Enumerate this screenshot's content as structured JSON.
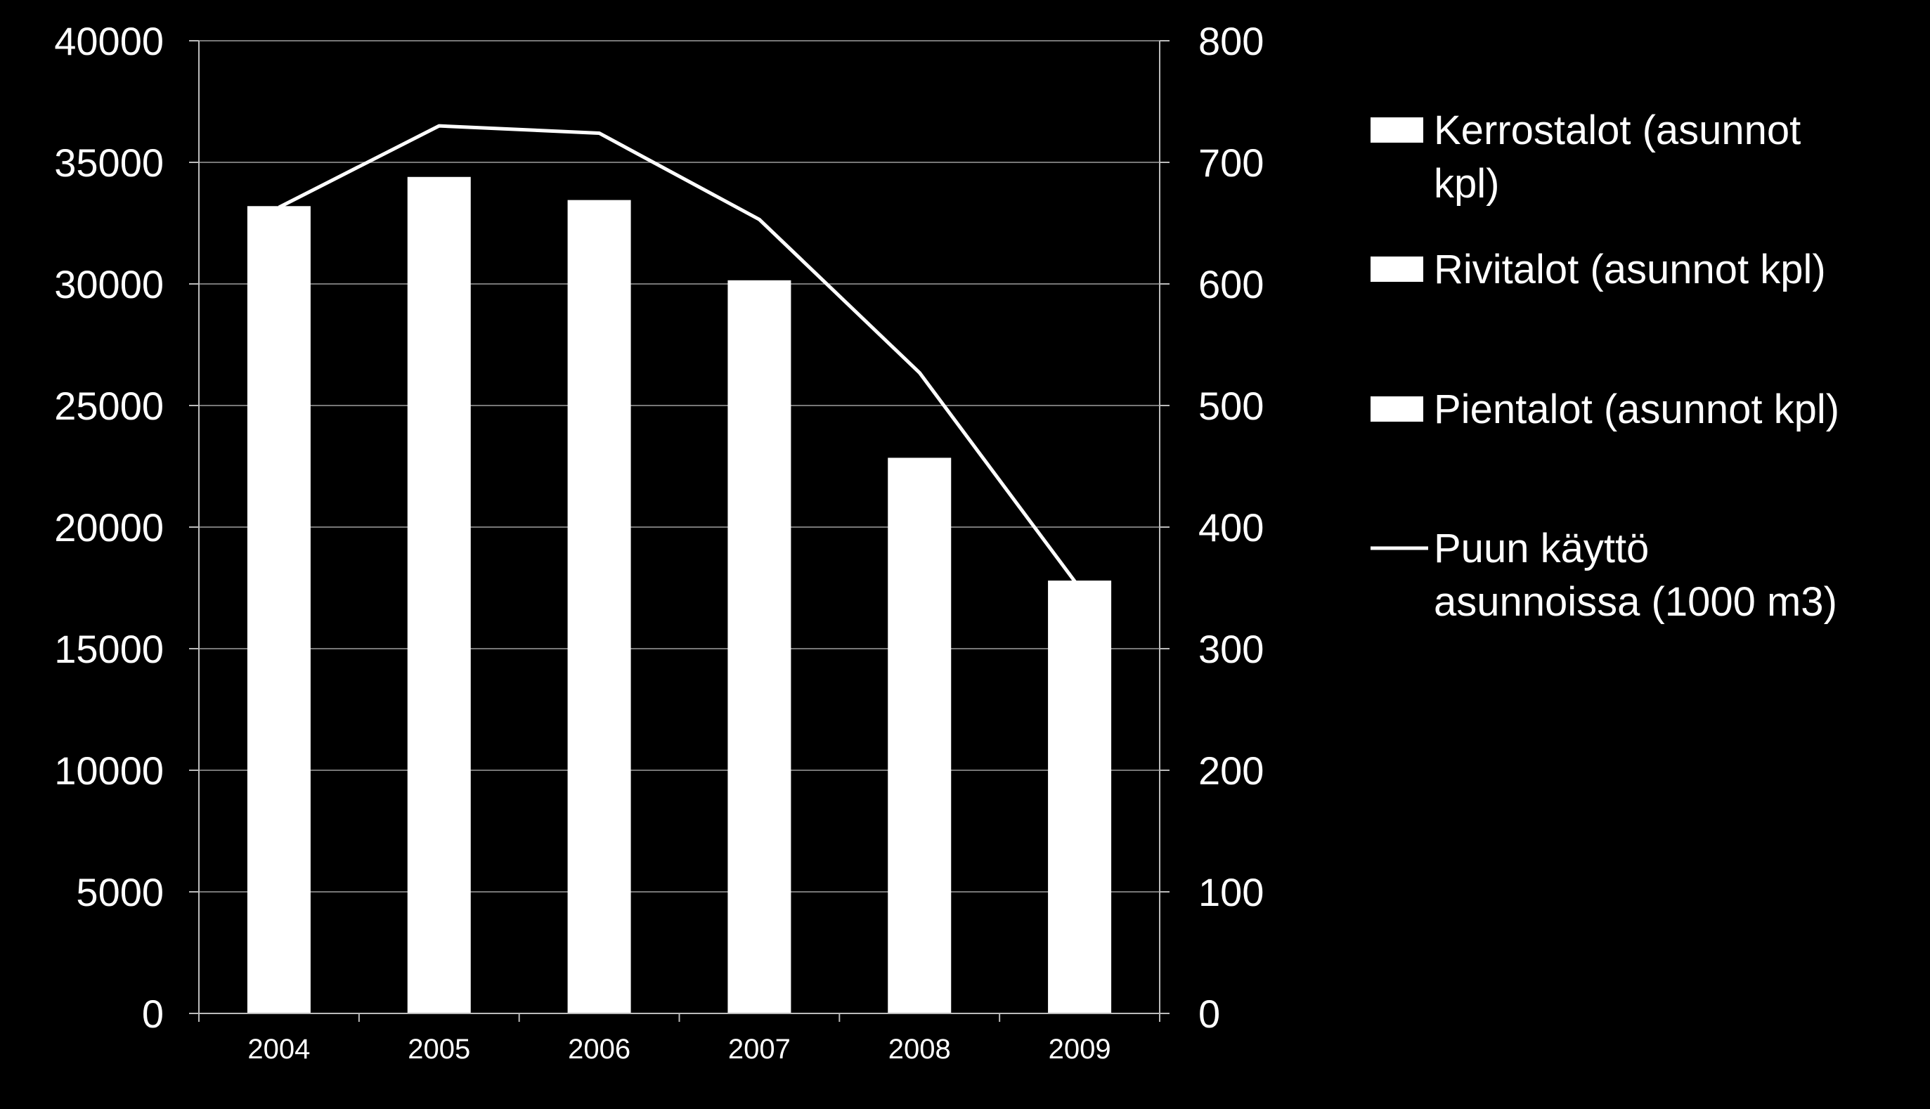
{
  "chart_data": {
    "type": "bar",
    "categories": [
      "2004",
      "2005",
      "2006",
      "2007",
      "2008",
      "2009"
    ],
    "series": [
      {
        "name": "Kerrostalot (asunnot kpl)",
        "type": "bar",
        "axis": "left",
        "values": [
          33200,
          34400,
          33450,
          30150,
          22850,
          17800
        ]
      },
      {
        "name": "Rivitalot (asunnot kpl)",
        "type": "bar",
        "axis": "left",
        "values": [
          0,
          0,
          0,
          0,
          0,
          0
        ]
      },
      {
        "name": "Pientalot (asunnot kpl)",
        "type": "bar",
        "axis": "left",
        "values": [
          0,
          0,
          0,
          0,
          0,
          0
        ]
      },
      {
        "name": "Puun käyttö asunnoissa (1000 m3)",
        "type": "line",
        "axis": "right",
        "values": [
          663,
          730,
          724,
          653,
          527,
          350
        ]
      }
    ],
    "y_left": {
      "min": 0,
      "max": 40000,
      "ticks": [
        "0",
        "5000",
        "10000",
        "15000",
        "20000",
        "25000",
        "30000",
        "35000",
        "40000"
      ]
    },
    "y_right": {
      "min": 0,
      "max": 800,
      "ticks": [
        "0",
        "100",
        "200",
        "300",
        "400",
        "500",
        "600",
        "700",
        "800"
      ]
    },
    "grid": true,
    "legend_position": "right",
    "colors": {
      "background": "#000000",
      "bars": "#ffffff",
      "line": "#ffffff",
      "grid": "#777777"
    }
  }
}
